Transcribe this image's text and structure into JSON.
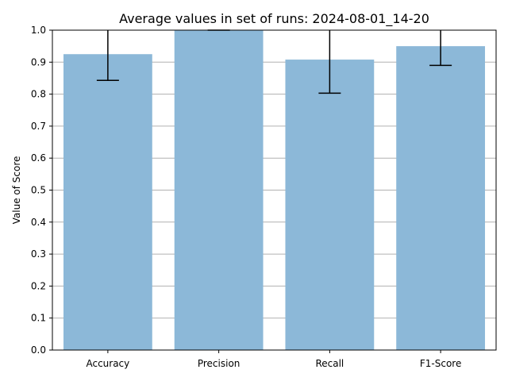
{
  "chart_data": {
    "type": "bar",
    "title": "Average values in set of runs: 2024-08-01_14-20",
    "xlabel": "",
    "ylabel": "Value of Score",
    "categories": [
      "Accuracy",
      "Precision",
      "Recall",
      "F1-Score"
    ],
    "values": [
      0.925,
      1.0,
      0.908,
      0.95
    ],
    "error_bars": [
      {
        "low": 0.843,
        "high": 1.0
      },
      {
        "low": 1.0,
        "high": 1.0
      },
      {
        "low": 0.803,
        "high": 1.0
      },
      {
        "low": 0.89,
        "high": 1.0
      }
    ],
    "ylim": [
      0,
      1.0
    ],
    "yticks": [
      "0.0",
      "0.1",
      "0.2",
      "0.3",
      "0.4",
      "0.5",
      "0.6",
      "0.7",
      "0.8",
      "0.9",
      "1.0"
    ],
    "grid": "horizontal",
    "bar_color": "#8cb8d8",
    "error_color": "#000000",
    "grid_color": "#b0b0b0"
  }
}
